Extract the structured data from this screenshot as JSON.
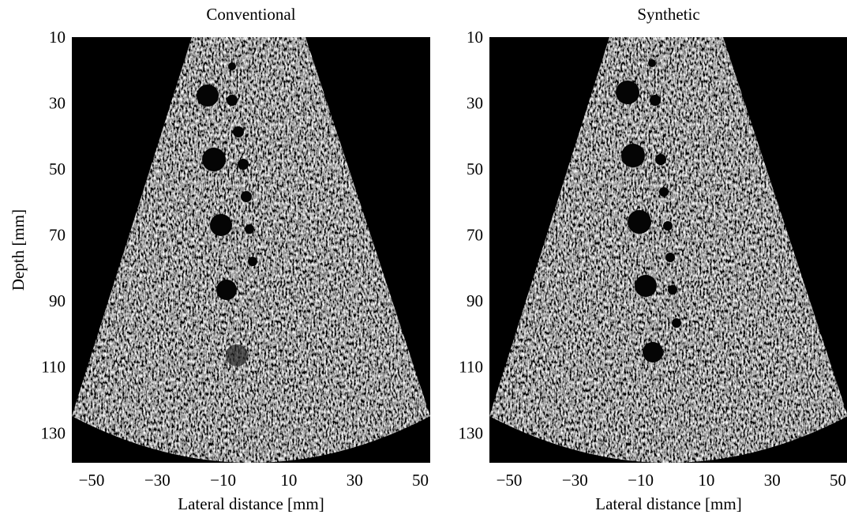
{
  "chart_data": [
    {
      "type": "image",
      "title": "Conventional",
      "xlabel": "Lateral distance [mm]",
      "ylabel": "Depth [mm]",
      "xlim": [
        -56,
        53
      ],
      "ylim": [
        9.5,
        138.5
      ],
      "reverse_y": true,
      "xticks": [
        {
          "value": -50,
          "label": "−50"
        },
        {
          "value": -30,
          "label": "−30"
        },
        {
          "value": -10,
          "label": "−10"
        },
        10,
        30,
        50
      ],
      "yticks": [
        10,
        30,
        50,
        70,
        90,
        110,
        130
      ]
    },
    {
      "type": "image",
      "title": "Synthetic",
      "xlabel": "Lateral distance [mm]",
      "xlim": [
        -56,
        53
      ],
      "ylim": [
        9.5,
        138.5
      ],
      "reverse_y": true,
      "xticks": [
        {
          "value": -50,
          "label": "−50"
        },
        {
          "value": -30,
          "label": "−30"
        },
        {
          "value": -10,
          "label": "−10"
        },
        10,
        30,
        50
      ],
      "yticks": [
        10,
        30,
        50,
        70,
        90,
        110,
        130
      ]
    }
  ]
}
